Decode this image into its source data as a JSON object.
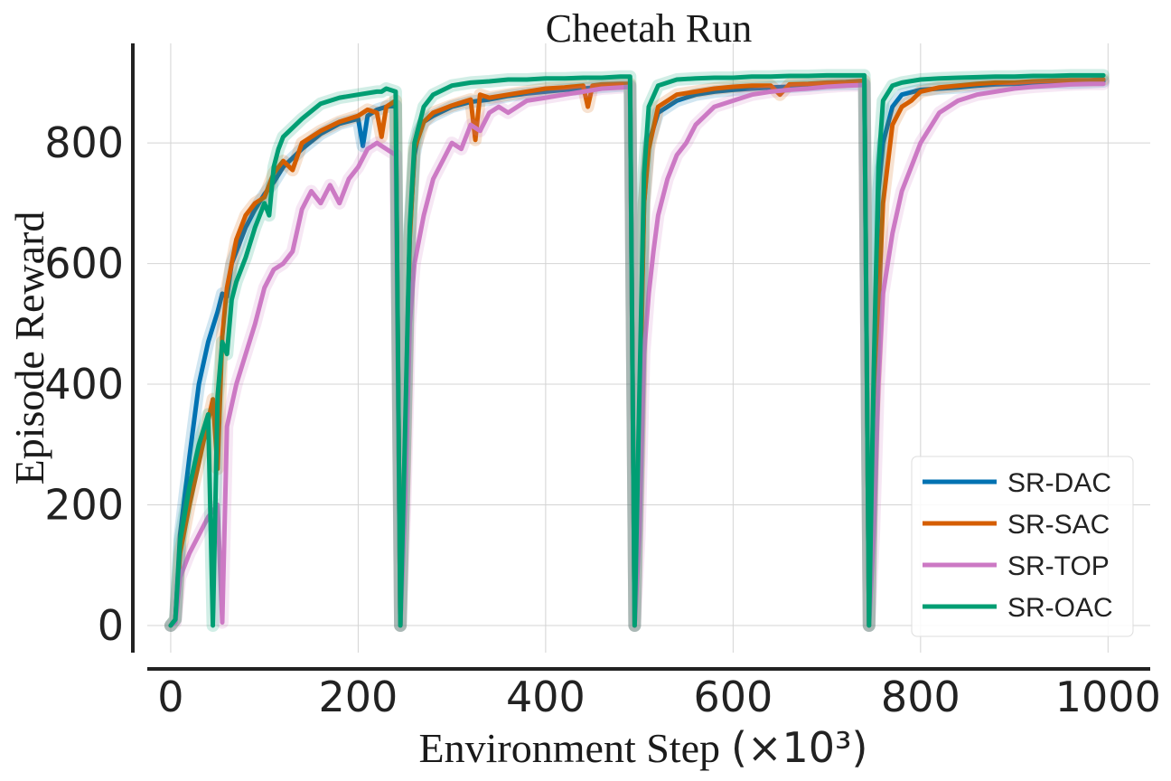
{
  "chart_data": {
    "type": "line",
    "title": "Cheetah Run",
    "xlabel": "Environment Step",
    "xlabel_unit": "(×10³)",
    "ylabel": "Episode Reward",
    "xlim": [
      -25,
      1045
    ],
    "ylim": [
      -45,
      965
    ],
    "xticks": [
      0,
      200,
      400,
      600,
      800,
      1000
    ],
    "yticks": [
      0,
      200,
      400,
      600,
      800
    ],
    "xtick_labels": [
      "0",
      "200",
      "400",
      "600",
      "800",
      "1000"
    ],
    "ytick_labels": [
      "0",
      "200",
      "400",
      "600",
      "800"
    ],
    "grid": true,
    "legend_position": "lower-right",
    "series": [
      {
        "name": "SR-DAC",
        "color": "#0072b2",
        "x": [
          0,
          5,
          10,
          20,
          30,
          40,
          50,
          55,
          60,
          65,
          70,
          80,
          90,
          100,
          110,
          120,
          140,
          160,
          180,
          200,
          205,
          210,
          220,
          230,
          240,
          245,
          250,
          255,
          260,
          265,
          270,
          280,
          300,
          320,
          340,
          360,
          380,
          400,
          420,
          440,
          460,
          480,
          490,
          495,
          500,
          505,
          510,
          520,
          540,
          560,
          580,
          600,
          620,
          640,
          660,
          680,
          700,
          720,
          740,
          745,
          750,
          755,
          760,
          770,
          780,
          800,
          820,
          840,
          860,
          880,
          900,
          920,
          940,
          960,
          980,
          995
        ],
        "values": [
          0,
          10,
          150,
          280,
          400,
          470,
          520,
          550,
          545,
          600,
          620,
          660,
          690,
          715,
          735,
          760,
          790,
          815,
          832,
          840,
          795,
          845,
          855,
          860,
          862,
          0,
          300,
          650,
          780,
          820,
          835,
          845,
          860,
          868,
          872,
          878,
          882,
          885,
          888,
          890,
          893,
          895,
          895,
          0,
          350,
          700,
          800,
          850,
          870,
          880,
          885,
          888,
          890,
          892,
          893,
          895,
          897,
          898,
          898,
          0,
          400,
          720,
          800,
          860,
          880,
          888,
          890,
          892,
          895,
          897,
          898,
          899,
          900,
          900,
          901,
          902
        ]
      },
      {
        "name": "SR-SAC",
        "color": "#d55e00",
        "x": [
          0,
          5,
          10,
          20,
          30,
          40,
          45,
          50,
          55,
          60,
          70,
          80,
          90,
          100,
          110,
          120,
          130,
          140,
          160,
          180,
          200,
          210,
          220,
          225,
          230,
          240,
          245,
          250,
          255,
          260,
          270,
          280,
          300,
          320,
          325,
          330,
          340,
          360,
          380,
          400,
          420,
          440,
          445,
          450,
          460,
          480,
          490,
          495,
          500,
          505,
          510,
          520,
          540,
          560,
          580,
          600,
          620,
          640,
          650,
          660,
          680,
          700,
          720,
          740,
          745,
          750,
          760,
          770,
          780,
          790,
          800,
          820,
          840,
          860,
          880,
          900,
          920,
          940,
          960,
          980,
          995
        ],
        "values": [
          0,
          10,
          120,
          200,
          270,
          340,
          375,
          260,
          480,
          560,
          640,
          680,
          700,
          710,
          750,
          770,
          755,
          800,
          820,
          835,
          845,
          855,
          850,
          810,
          860,
          870,
          0,
          280,
          640,
          790,
          835,
          850,
          862,
          872,
          805,
          880,
          875,
          880,
          885,
          890,
          892,
          895,
          860,
          895,
          897,
          898,
          898,
          0,
          300,
          700,
          790,
          860,
          880,
          885,
          890,
          893,
          895,
          895,
          880,
          897,
          898,
          900,
          901,
          903,
          0,
          350,
          700,
          830,
          860,
          870,
          885,
          892,
          895,
          898,
          900,
          900,
          902,
          903,
          904,
          904,
          905
        ]
      },
      {
        "name": "SR-TOP",
        "color": "#cc79c4",
        "x": [
          0,
          5,
          10,
          15,
          20,
          30,
          40,
          50,
          55,
          60,
          70,
          80,
          90,
          100,
          110,
          120,
          130,
          140,
          150,
          160,
          170,
          180,
          190,
          200,
          210,
          220,
          230,
          240,
          245,
          250,
          255,
          260,
          270,
          280,
          290,
          300,
          310,
          320,
          330,
          340,
          350,
          360,
          380,
          400,
          420,
          440,
          460,
          480,
          490,
          495,
          500,
          505,
          510,
          515,
          520,
          530,
          540,
          550,
          560,
          580,
          600,
          620,
          640,
          660,
          680,
          700,
          720,
          740,
          745,
          750,
          755,
          760,
          765,
          770,
          780,
          790,
          800,
          820,
          840,
          860,
          880,
          900,
          920,
          940,
          960,
          980,
          995
        ],
        "values": [
          0,
          5,
          80,
          100,
          120,
          150,
          180,
          200,
          5,
          330,
          400,
          450,
          500,
          560,
          590,
          600,
          620,
          690,
          720,
          700,
          730,
          700,
          740,
          760,
          790,
          800,
          790,
          780,
          0,
          200,
          500,
          600,
          680,
          740,
          770,
          800,
          790,
          830,
          820,
          850,
          860,
          850,
          870,
          875,
          880,
          885,
          890,
          892,
          893,
          0,
          150,
          450,
          550,
          620,
          680,
          740,
          780,
          800,
          830,
          860,
          870,
          880,
          885,
          888,
          890,
          893,
          895,
          896,
          0,
          150,
          400,
          550,
          600,
          650,
          720,
          760,
          800,
          850,
          870,
          880,
          885,
          890,
          893,
          895,
          897,
          898,
          898
        ]
      },
      {
        "name": "SR-OAC",
        "color": "#009e73",
        "x": [
          0,
          5,
          10,
          20,
          30,
          40,
          45,
          50,
          55,
          60,
          65,
          70,
          80,
          90,
          100,
          105,
          110,
          115,
          120,
          140,
          160,
          180,
          200,
          220,
          225,
          230,
          240,
          245,
          250,
          255,
          260,
          270,
          280,
          300,
          320,
          340,
          360,
          380,
          400,
          420,
          440,
          460,
          480,
          490,
          495,
          500,
          505,
          510,
          520,
          540,
          560,
          580,
          600,
          620,
          640,
          660,
          680,
          700,
          720,
          740,
          745,
          750,
          755,
          760,
          770,
          780,
          800,
          820,
          840,
          860,
          880,
          900,
          920,
          940,
          960,
          980,
          995
        ],
        "values": [
          0,
          10,
          140,
          230,
          300,
          350,
          0,
          380,
          470,
          450,
          540,
          570,
          610,
          660,
          700,
          680,
          760,
          790,
          810,
          840,
          865,
          875,
          880,
          885,
          885,
          890,
          885,
          0,
          320,
          660,
          800,
          860,
          880,
          895,
          900,
          902,
          905,
          905,
          907,
          907,
          908,
          908,
          910,
          910,
          0,
          380,
          750,
          860,
          895,
          905,
          907,
          908,
          908,
          910,
          910,
          911,
          911,
          912,
          912,
          912,
          0,
          420,
          760,
          870,
          895,
          900,
          905,
          907,
          908,
          909,
          910,
          910,
          911,
          911,
          912,
          912,
          912
        ]
      }
    ]
  }
}
